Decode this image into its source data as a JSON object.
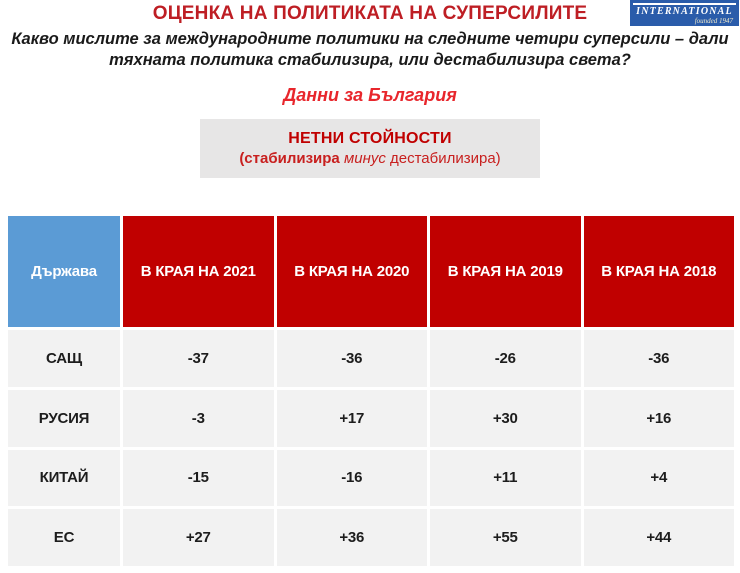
{
  "logo": {
    "wordmark": "INTERNATIONAL",
    "founded": "founded 1947",
    "bg_color": "#2A5CAA"
  },
  "header": {
    "title": "ОЦЕНКА НА ПОЛИТИКАТА НА СУПЕРСИЛИТЕ",
    "subtitle_lines": [
      "Какво мислите за международните политики на следните четири суперсили – дали",
      "тяхната политика стабилизира, или дестабилизира света?"
    ],
    "region_note": "Данни за България"
  },
  "net_values_box": {
    "title": "НЕТНИ СТОЙНОСТИ",
    "sub_prefix": "(стабилизира ",
    "sub_italic": "минус",
    "sub_suffix": " дестабилизира)"
  },
  "colors": {
    "title_red": "#BE1E24",
    "bright_red": "#E8262C",
    "table_header_red": "#C00000",
    "table_header_blue": "#5B9BD5",
    "row_gray": "#F2F2F2",
    "box_gray": "#E7E6E6",
    "logo_blue": "#2A5CAA"
  },
  "chart_data": {
    "type": "table",
    "title": "ОЦЕНКА НА ПОЛИТИКАТА НА СУПЕРСИЛИТЕ",
    "subtitle": "Какво мислите за международните политики на следните четири суперсили – дали тяхната политика стабилизира, или дестабилизира света?",
    "note": "НЕТНИ СТОЙНОСТИ (стабилизира минус дестабилизира) — Данни за България",
    "columns": [
      "Държава",
      "В КРАЯ НА 2021",
      "В КРАЯ НА 2020",
      "В КРАЯ НА 2019",
      "В КРАЯ НА 2018"
    ],
    "rows": [
      {
        "country": "САЩ",
        "values": [
          "-37",
          "-36",
          "-26",
          "-36"
        ]
      },
      {
        "country": "РУСИЯ",
        "values": [
          "-3",
          "+17",
          "+30",
          "+16"
        ]
      },
      {
        "country": "КИТАЙ",
        "values": [
          "-15",
          "-16",
          "+11",
          "+4"
        ]
      },
      {
        "country": "ЕС",
        "values": [
          "+27",
          "+36",
          "+55",
          "+44"
        ]
      }
    ]
  }
}
